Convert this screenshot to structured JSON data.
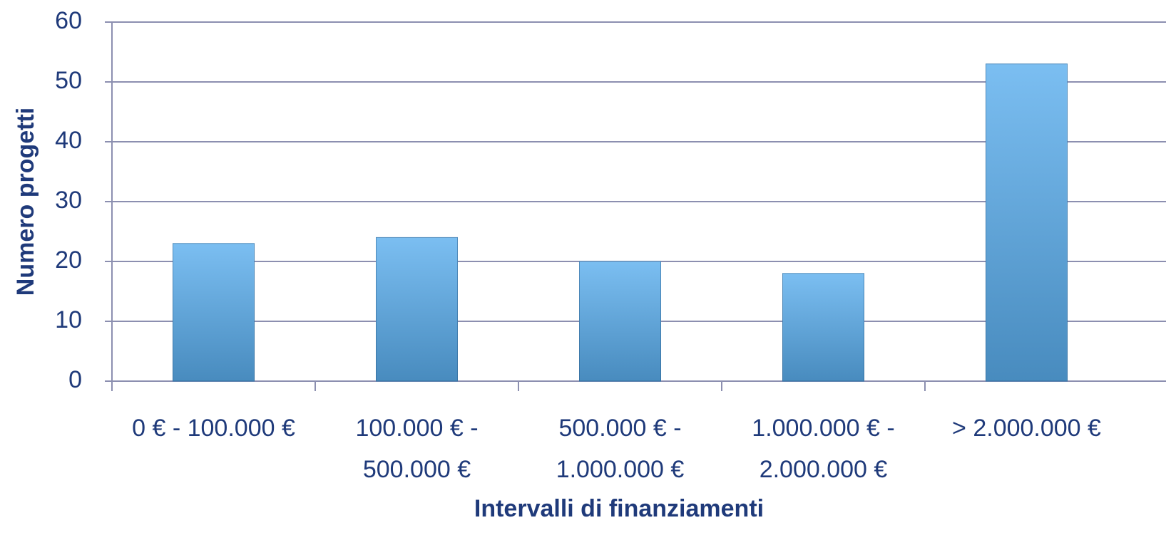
{
  "chart_data": {
    "type": "bar",
    "x_label": "Intervalli di finanziamenti",
    "y_label": "Numero progetti",
    "categories": [
      "0 € - 100.000 €",
      "100.000 € - 500.000 €",
      "500.000 € - 1.000.000 €",
      "1.000.000 € - 2.000.000 €",
      "> 2.000.000 €"
    ],
    "values": [
      23,
      24,
      20,
      18,
      53
    ],
    "color": "#5aaeee",
    "ylim": [
      0,
      60
    ],
    "yticks": [
      0,
      10,
      20,
      30,
      40,
      50,
      60
    ],
    "grid": true
  }
}
